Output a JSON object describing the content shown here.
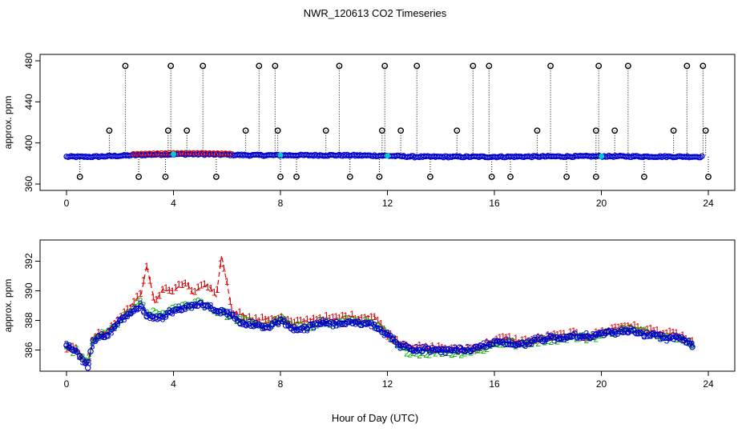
{
  "page": {
    "title": "NWR_120613  CO2 Timeseries",
    "xlabel": "Hour of Day (UTC)"
  },
  "colors": {
    "axis": "#000000",
    "series1": "#e00000",
    "series2": "#00b000",
    "series3": "#0000cc",
    "highlight": "#00cccc",
    "flagged": "#000000"
  },
  "chart_data": [
    {
      "type": "scatter",
      "name": "top-panel",
      "ylabel": "approx. ppm",
      "xlim": [
        0,
        24
      ],
      "ylim": [
        360,
        480
      ],
      "x_ticks": [
        0,
        4,
        8,
        12,
        16,
        20,
        24
      ],
      "x_tick_labels": [
        "0",
        "4",
        "8",
        "12",
        "16",
        "20",
        "24"
      ],
      "y_ticks": [
        360,
        400,
        440,
        480
      ],
      "y_tick_labels": [
        "360",
        "400",
        "440",
        "480"
      ],
      "flag_high_value": 475,
      "flag_mid_value": 412,
      "flag_low_value": 367,
      "flag_high_hours": [
        2.2,
        3.9,
        5.1,
        7.2,
        7.8,
        10.2,
        11.9,
        13.1,
        15.2,
        15.8,
        18.1,
        19.9,
        21.0,
        23.2,
        23.8
      ],
      "flag_mid_hours": [
        1.6,
        3.8,
        4.5,
        6.7,
        7.9,
        9.7,
        11.8,
        12.5,
        14.6,
        17.6,
        19.8,
        20.5,
        22.7,
        23.9
      ],
      "flag_low_hours": [
        0.5,
        2.7,
        3.7,
        5.6,
        8.0,
        8.6,
        10.6,
        11.7,
        13.6,
        15.9,
        16.6,
        18.7,
        19.8,
        21.6,
        24.0
      ]
    },
    {
      "type": "line",
      "name": "bottom-panel",
      "ylabel": "approx. ppm",
      "xlim": [
        0,
        24
      ],
      "ylim": [
        385,
        393
      ],
      "x_ticks": [
        0,
        4,
        8,
        12,
        16,
        20,
        24
      ],
      "x_tick_labels": [
        "0",
        "4",
        "8",
        "12",
        "16",
        "20",
        "24"
      ],
      "y_ticks": [
        386,
        388,
        390,
        392
      ],
      "y_tick_labels": [
        "386",
        "388",
        "390",
        "392"
      ],
      "series": [
        {
          "name": "1",
          "marker": "1",
          "x": [
            0.0,
            0.4,
            0.8,
            1.0,
            1.5,
            2.0,
            2.5,
            2.8,
            3.0,
            3.3,
            3.6,
            4.0,
            4.3,
            4.5,
            4.7,
            5.0,
            5.3,
            5.6,
            5.8,
            6.0,
            6.2,
            6.6,
            7.0,
            7.5,
            8.0,
            8.5,
            9.0,
            9.5,
            10.0,
            10.5,
            11.0,
            11.5,
            12.0,
            12.5,
            13.0,
            13.5,
            14.0,
            14.5,
            15.0,
            15.5,
            16.0,
            16.5,
            17.0,
            17.5,
            18.0,
            18.5,
            19.0,
            19.5,
            20.0,
            20.5,
            21.0,
            21.5,
            22.0,
            22.5,
            23.0,
            23.5
          ],
          "y": [
            386.2,
            386.0,
            385.1,
            386.9,
            387.2,
            388.2,
            389.2,
            389.8,
            391.7,
            389.2,
            390.1,
            390.0,
            390.4,
            390.6,
            389.8,
            390.2,
            390.4,
            389.6,
            392.4,
            390.5,
            388.6,
            388.4,
            388.0,
            388.1,
            388.2,
            387.8,
            388.0,
            388.2,
            388.1,
            388.3,
            388.2,
            388.3,
            387.1,
            386.5,
            386.2,
            386.1,
            386.2,
            386.0,
            386.1,
            386.2,
            386.7,
            386.8,
            386.6,
            386.7,
            386.9,
            387.0,
            387.1,
            386.9,
            387.2,
            387.5,
            387.7,
            387.4,
            387.3,
            387.1,
            387.0,
            386.3
          ]
        },
        {
          "name": "2",
          "marker": "2",
          "x": [
            0.0,
            0.4,
            0.8,
            1.0,
            1.5,
            2.0,
            2.5,
            2.8,
            3.0,
            3.5,
            4.0,
            4.5,
            5.0,
            5.5,
            6.0,
            6.5,
            7.0,
            7.5,
            8.0,
            8.5,
            9.0,
            9.5,
            10.0,
            10.5,
            11.0,
            11.5,
            12.0,
            12.5,
            13.0,
            13.5,
            14.0,
            14.5,
            15.0,
            15.5,
            16.0,
            16.5,
            17.0,
            17.5,
            18.0,
            18.5,
            19.0,
            19.5,
            20.0,
            20.5,
            21.0,
            21.5,
            22.0,
            22.5,
            23.0,
            23.5
          ],
          "y": [
            386.1,
            385.9,
            385.0,
            386.8,
            387.1,
            387.9,
            388.8,
            389.2,
            388.5,
            388.4,
            388.7,
            389.0,
            389.3,
            388.7,
            388.4,
            388.0,
            387.8,
            387.6,
            388.1,
            387.5,
            387.6,
            387.9,
            387.7,
            388.0,
            387.9,
            387.7,
            387.0,
            386.1,
            385.8,
            385.8,
            385.9,
            385.8,
            385.9,
            386.0,
            386.4,
            386.5,
            386.3,
            386.6,
            386.7,
            386.8,
            386.9,
            386.8,
            387.0,
            387.3,
            387.4,
            387.2,
            387.1,
            386.9,
            386.9,
            386.2
          ]
        },
        {
          "name": "3",
          "marker": "3",
          "x": [
            0.0,
            0.4,
            0.8,
            1.0,
            1.5,
            2.0,
            2.5,
            2.8,
            3.0,
            3.5,
            4.0,
            4.5,
            5.0,
            5.5,
            6.0,
            6.5,
            7.0,
            7.5,
            8.0,
            8.5,
            9.0,
            9.5,
            10.0,
            10.5,
            11.0,
            11.5,
            12.0,
            12.5,
            13.0,
            13.5,
            14.0,
            14.5,
            15.0,
            15.5,
            16.0,
            16.5,
            17.0,
            17.5,
            18.0,
            18.5,
            19.0,
            19.5,
            20.0,
            20.5,
            21.0,
            21.5,
            22.0,
            22.5,
            23.0,
            23.5
          ],
          "y": [
            386.3,
            385.8,
            384.9,
            386.7,
            387.0,
            388.0,
            388.6,
            389.0,
            388.3,
            388.2,
            388.6,
            388.9,
            389.1,
            388.8,
            388.5,
            387.9,
            387.7,
            387.5,
            388.0,
            387.4,
            387.5,
            387.8,
            387.8,
            387.9,
            387.8,
            387.7,
            387.0,
            386.3,
            386.0,
            386.0,
            385.9,
            386.1,
            386.0,
            386.2,
            386.5,
            386.5,
            386.4,
            386.6,
            386.8,
            386.8,
            387.0,
            386.9,
            387.1,
            387.2,
            387.3,
            387.1,
            387.0,
            386.8,
            386.8,
            386.2
          ]
        }
      ]
    }
  ]
}
